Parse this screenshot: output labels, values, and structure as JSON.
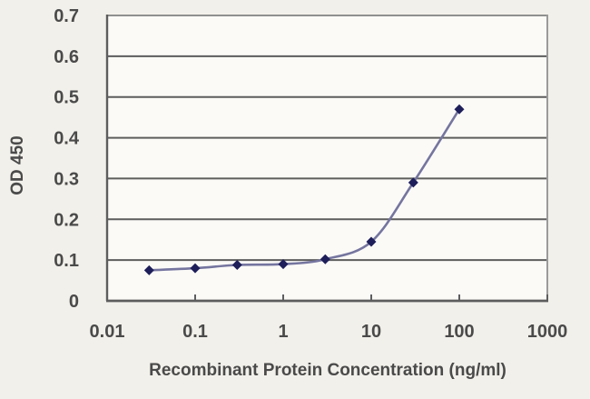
{
  "chart_data": {
    "type": "line",
    "title": "",
    "xlabel": "Recombinant Protein Concentration (ng/ml)",
    "ylabel": "OD 450",
    "xscale": "log",
    "xlim": [
      0.01,
      1000
    ],
    "ylim": [
      0,
      0.7
    ],
    "grid": true,
    "legend": false,
    "xticks": [
      {
        "value": 0.01,
        "label": "0.01"
      },
      {
        "value": 0.1,
        "label": "0.1"
      },
      {
        "value": 1,
        "label": "1"
      },
      {
        "value": 10,
        "label": "10"
      },
      {
        "value": 100,
        "label": "100"
      },
      {
        "value": 1000,
        "label": "1000"
      }
    ],
    "yticks": [
      {
        "value": 0,
        "label": "0"
      },
      {
        "value": 0.1,
        "label": "0.1"
      },
      {
        "value": 0.2,
        "label": "0.2"
      },
      {
        "value": 0.3,
        "label": "0.3"
      },
      {
        "value": 0.4,
        "label": "0.4"
      },
      {
        "value": 0.5,
        "label": "0.5"
      },
      {
        "value": 0.6,
        "label": "0.6"
      },
      {
        "value": 0.7,
        "label": "0.7"
      }
    ],
    "series": [
      {
        "marker": "diamond",
        "x": [
          0.03,
          0.1,
          0.3,
          1,
          3,
          10,
          30,
          100
        ],
        "y": [
          0.075,
          0.08,
          0.088,
          0.09,
          0.102,
          0.145,
          0.29,
          0.47
        ]
      }
    ],
    "colors": {
      "background": "#f2f0ea",
      "plot_background": "#fbfaf7",
      "grid": "#5d5d5d",
      "frame": "#9a9a9a",
      "text": "#4a4a4a",
      "line": "#75759f",
      "marker": "#1e1e5a"
    }
  }
}
